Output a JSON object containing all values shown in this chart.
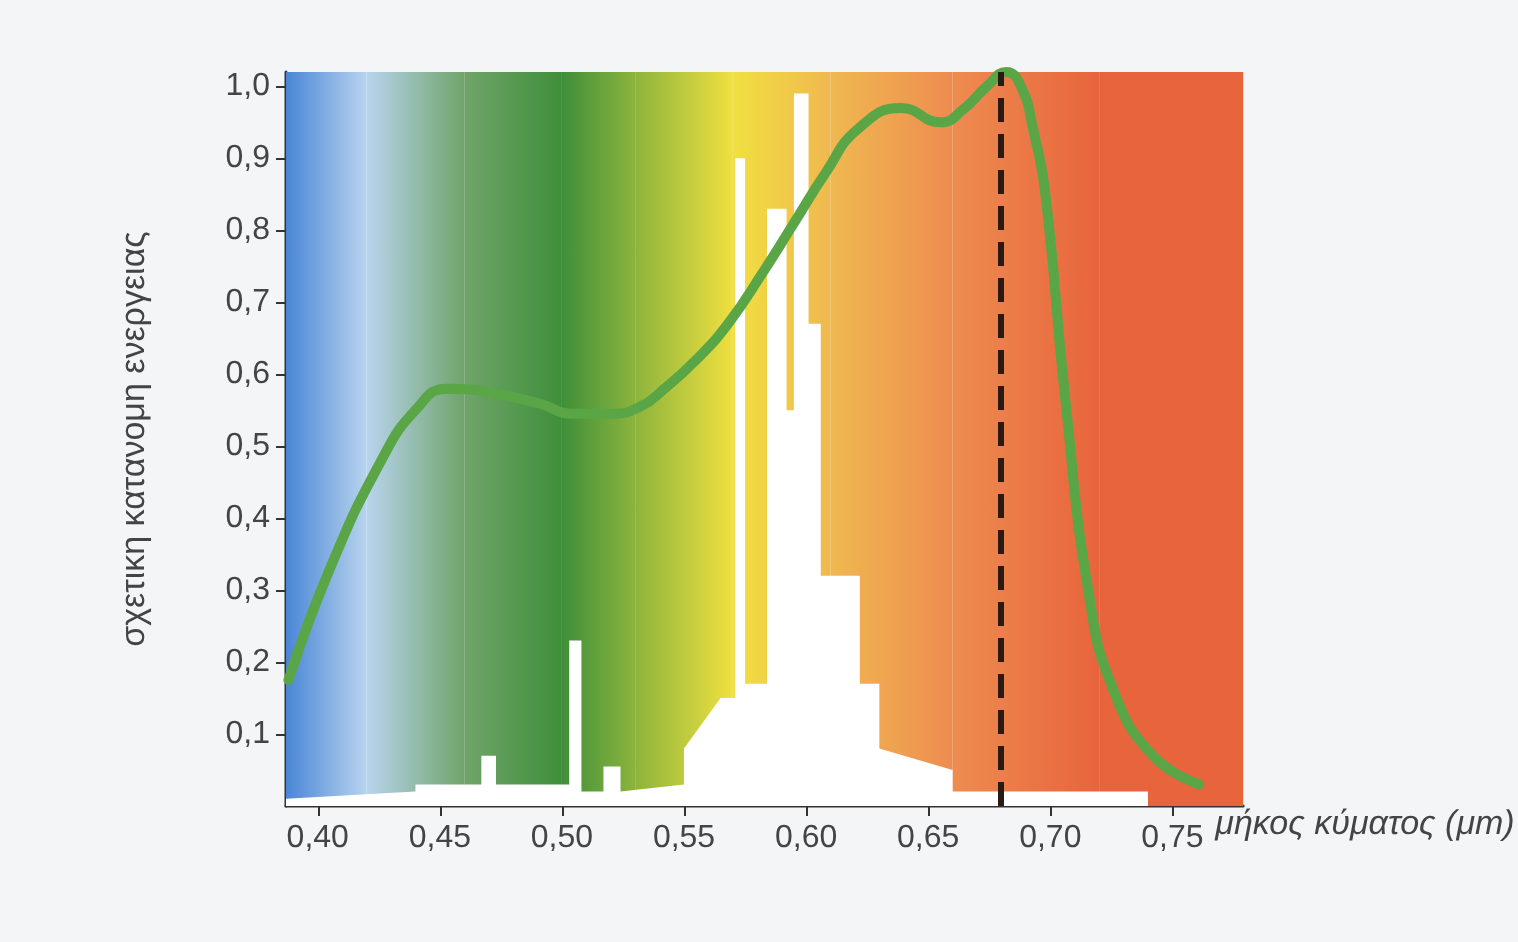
{
  "chart_data": {
    "type": "line",
    "ylabel": "σχετικη κατανομη ενεργειας",
    "xlabel": "μήκος κύματος (μm)",
    "xlim": [
      0.387,
      0.779
    ],
    "ylim": [
      0,
      1.02
    ],
    "xticks": [
      {
        "value": 0.4,
        "label": "0,40"
      },
      {
        "value": 0.45,
        "label": "0,45"
      },
      {
        "value": 0.5,
        "label": "0,50"
      },
      {
        "value": 0.55,
        "label": "0,55"
      },
      {
        "value": 0.6,
        "label": "0,60"
      },
      {
        "value": 0.65,
        "label": "0,65"
      },
      {
        "value": 0.7,
        "label": "0,70"
      },
      {
        "value": 0.75,
        "label": "0,75"
      }
    ],
    "yticks": [
      {
        "value": 0.1,
        "label": "0,1"
      },
      {
        "value": 0.2,
        "label": "0,2"
      },
      {
        "value": 0.3,
        "label": "0,3"
      },
      {
        "value": 0.4,
        "label": "0,4"
      },
      {
        "value": 0.5,
        "label": "0,5"
      },
      {
        "value": 0.6,
        "label": "0,6"
      },
      {
        "value": 0.7,
        "label": "0,7"
      },
      {
        "value": 0.8,
        "label": "0,8"
      },
      {
        "value": 0.9,
        "label": "0,9"
      },
      {
        "value": 1.0,
        "label": "1,0"
      }
    ],
    "grid": false,
    "marker": "none",
    "series": [
      {
        "type": "area",
        "color": "#ffffff",
        "x": [
          0.387,
          0.44,
          0.44,
          0.467,
          0.467,
          0.473,
          0.473,
          0.503,
          0.503,
          0.508,
          0.508,
          0.517,
          0.517,
          0.524,
          0.524,
          0.55,
          0.55,
          0.565,
          0.565,
          0.571,
          0.571,
          0.575,
          0.575,
          0.584,
          0.584,
          0.592,
          0.592,
          0.595,
          0.595,
          0.601,
          0.601,
          0.606,
          0.606,
          0.622,
          0.622,
          0.63,
          0.63,
          0.66,
          0.66,
          0.74
        ],
        "values": [
          0.01,
          0.02,
          0.03,
          0.03,
          0.07,
          0.07,
          0.03,
          0.03,
          0.23,
          0.23,
          0.02,
          0.02,
          0.055,
          0.055,
          0.02,
          0.03,
          0.08,
          0.15,
          0.15,
          0.15,
          0.9,
          0.9,
          0.17,
          0.17,
          0.83,
          0.83,
          0.55,
          0.55,
          0.99,
          0.99,
          0.67,
          0.67,
          0.32,
          0.32,
          0.17,
          0.17,
          0.08,
          0.05,
          0.02,
          0.02
        ]
      },
      {
        "color": "#5aa646",
        "line_style": "solid",
        "x": [
          0.388,
          0.405,
          0.426,
          0.44,
          0.453,
          0.47,
          0.49,
          0.505,
          0.52,
          0.532,
          0.542,
          0.555,
          0.568,
          0.582,
          0.595,
          0.608,
          0.621,
          0.639,
          0.655,
          0.665,
          0.674,
          0.682,
          0.688,
          0.693,
          0.698,
          0.706,
          0.716,
          0.726,
          0.742,
          0.761
        ],
        "values": [
          0.175,
          0.33,
          0.48,
          0.55,
          0.58,
          0.575,
          0.56,
          0.545,
          0.545,
          0.555,
          0.58,
          0.62,
          0.67,
          0.74,
          0.81,
          0.88,
          0.94,
          0.97,
          0.95,
          0.97,
          1.0,
          1.02,
          1.0,
          0.94,
          0.85,
          0.57,
          0.29,
          0.16,
          0.07,
          0.03
        ]
      }
    ],
    "ref_lines": [
      {
        "axis": "x",
        "value": 0.68,
        "color": "#2a1a14",
        "line_style": "dashed"
      }
    ],
    "bands": [
      {
        "axis": "x",
        "from": 0.387,
        "to": 0.42,
        "color": "#4a86d6"
      },
      {
        "axis": "x",
        "from": 0.42,
        "to": 0.46,
        "color": "#b8d4ee"
      },
      {
        "axis": "x",
        "from": 0.46,
        "to": 0.5,
        "color": "#6fa46a"
      },
      {
        "axis": "x",
        "from": 0.5,
        "to": 0.53,
        "color": "#3f8f3a"
      },
      {
        "axis": "x",
        "from": 0.53,
        "to": 0.57,
        "color": "#8cb43c"
      },
      {
        "axis": "x",
        "from": 0.57,
        "to": 0.61,
        "color": "#f0e040"
      },
      {
        "axis": "x",
        "from": 0.61,
        "to": 0.66,
        "color": "#f0b850"
      },
      {
        "axis": "x",
        "from": 0.66,
        "to": 0.72,
        "color": "#ee8c50"
      },
      {
        "axis": "x",
        "from": 0.72,
        "to": 0.779,
        "color": "#e8643c"
      }
    ]
  }
}
